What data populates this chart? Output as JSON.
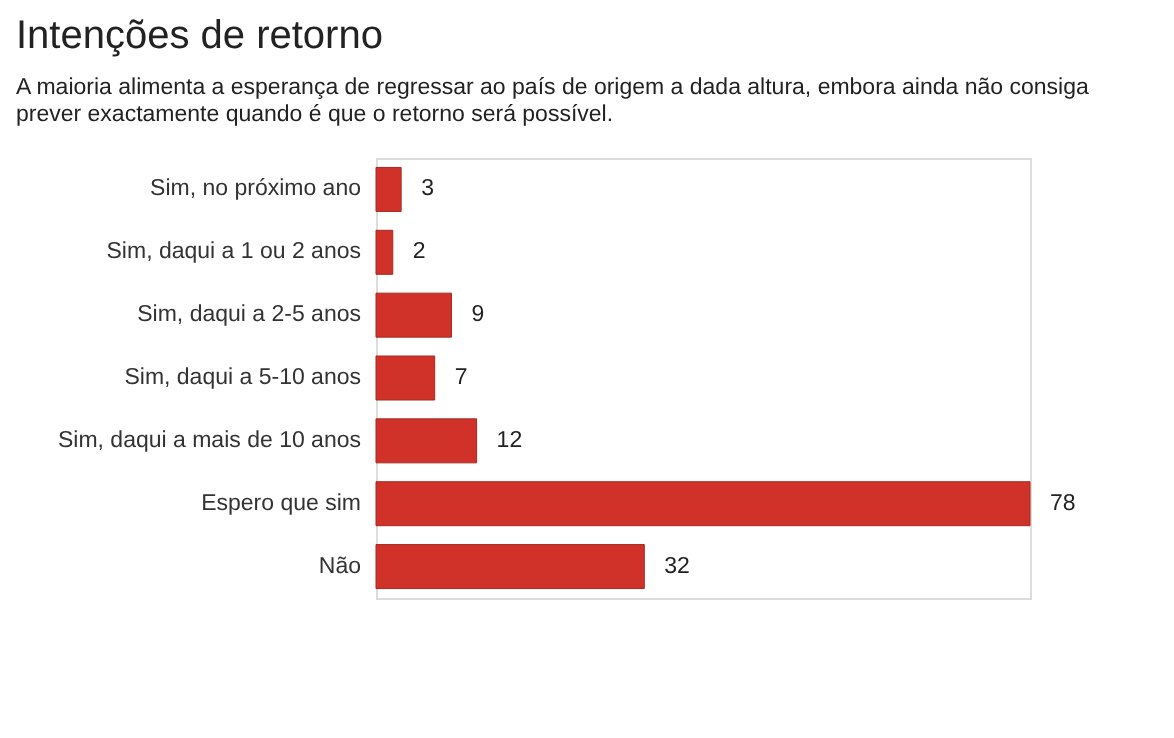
{
  "chart_data": {
    "type": "bar",
    "orientation": "horizontal",
    "title": "Intenções de retorno",
    "subtitle": "A maioria alimenta a esperança de regressar ao país de origem a dada altura, embora ainda não consiga prever exactamente quando é que o retorno será possível.",
    "categories": [
      "Sim, no próximo ano",
      "Sim, daqui a 1 ou 2 anos",
      "Sim, daqui a 2-5 anos",
      "Sim, daqui a 5-10 anos",
      "Sim, daqui a mais de 10 anos",
      "Espero que sim",
      "Não"
    ],
    "values": [
      3,
      2,
      9,
      7,
      12,
      78,
      32
    ],
    "color": "#d03128",
    "data_labels": true
  }
}
